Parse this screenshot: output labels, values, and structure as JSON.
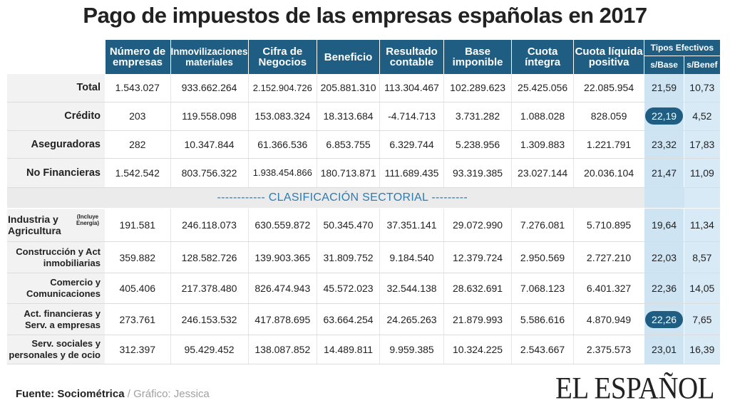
{
  "title": "Pago de impuestos de las empresas españolas en 2017",
  "headers": {
    "col1": "Número de empresas",
    "col2": "Inmovilizaciones materiales",
    "col3": "Cifra de Negocios",
    "col4": "Beneficio",
    "col5": "Resultado contable",
    "col6": "Base imponible",
    "col7": "Cuota íntegra",
    "col8": "Cuota líquida positiva",
    "tipos": "Tipos Efectivos",
    "sbase": "s/Base",
    "sbenef": "s/Benef"
  },
  "section_label": "------------   CLASIFICACIÓN SECTORIAL   ---------",
  "industria_note": "(Incluye Energía)",
  "highlight_color": "#1f5e82",
  "chart_data": {
    "type": "table",
    "title": "Pago de impuestos de las empresas españolas en 2017",
    "columns": [
      "Número de empresas",
      "Inmovilizaciones materiales",
      "Cifra de Negocios",
      "Beneficio",
      "Resultado contable",
      "Base imponible",
      "Cuota íntegra",
      "Cuota líquida positiva",
      "Tipos Efectivos s/Base",
      "Tipos Efectivos s/Benef"
    ],
    "rows": [
      {
        "label": "Total",
        "values": [
          "1.543.027",
          "933.662.264",
          "2.152.904.726",
          "205.881.310",
          "113.304.467",
          "102.289.623",
          "25.425.056",
          "22.085.954",
          "21,59",
          "10,73"
        ]
      },
      {
        "label": "Crédito",
        "values": [
          "203",
          "119.558.098",
          "153.083.324",
          "18.313.684",
          "-4.714.713",
          "3.731.282",
          "1.088.028",
          "828.059",
          "22,19",
          "4,52"
        ],
        "highlight_base": true
      },
      {
        "label": "Aseguradoras",
        "values": [
          "282",
          "10.347.844",
          "61.366.536",
          "6.853.755",
          "6.329.744",
          "5.238.956",
          "1.309.883",
          "1.221.791",
          "23,32",
          "17,83"
        ]
      },
      {
        "label": "No Financieras",
        "values": [
          "1.542.542",
          "803.756.322",
          "1.938.454.866",
          "180.713.871",
          "111.689.435",
          "93.319.385",
          "23.027.144",
          "20.036.104",
          "21,47",
          "11,09"
        ]
      },
      {
        "label": "Industria y Agricultura",
        "values": [
          "191.581",
          "246.118.073",
          "630.559.872",
          "50.345.470",
          "37.351.141",
          "29.072.990",
          "7.276.081",
          "5.710.895",
          "19,64",
          "11,34"
        ]
      },
      {
        "label": "Construcción y Act inmobiliarias",
        "values": [
          "359.882",
          "128.582.726",
          "139.903.365",
          "31.809.752",
          "9.184.540",
          "12.379.724",
          "2.950.569",
          "2.727.210",
          "22,03",
          "8,57"
        ]
      },
      {
        "label": "Comercio y Comunicaciones",
        "values": [
          "405.406",
          "217.378.480",
          "826.474.943",
          "45.572.023",
          "32.544.138",
          "28.632.691",
          "7.068.123",
          "6.401.327",
          "22,36",
          "14,05"
        ]
      },
      {
        "label": "Act. financieras y Serv. a empresas",
        "values": [
          "273.761",
          "246.153.532",
          "417.878.695",
          "63.664.254",
          "24.265.263",
          "21.879.993",
          "5.586.616",
          "4.870.949",
          "22,26",
          "7,65"
        ],
        "highlight_base": true
      },
      {
        "label": "Serv. sociales y personales y de ocio",
        "values": [
          "312.397",
          "95.429.452",
          "138.087.852",
          "14.489.811",
          "9.959.385",
          "10.324.225",
          "2.543.667",
          "2.375.573",
          "23,01",
          "16,39"
        ]
      }
    ]
  },
  "footer": {
    "source": "Fuente: Sociométrica",
    "separator": " / ",
    "graphic": "Gráfico: Jessica"
  },
  "logo": "EL ESPAÑOL"
}
